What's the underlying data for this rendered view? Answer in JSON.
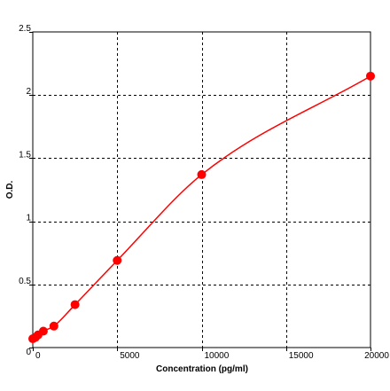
{
  "chart_data": {
    "type": "scatter",
    "title": "",
    "xlabel": "Concentration (pg/ml)",
    "ylabel": "O.D.",
    "xlim": [
      0,
      20000
    ],
    "ylim": [
      0,
      2.5
    ],
    "xticks": [
      0,
      5000,
      10000,
      15000,
      20000
    ],
    "yticks": [
      0,
      0.5,
      1,
      1.5,
      2,
      2.5
    ],
    "xtick_labels": [
      "0",
      "5000",
      "10000",
      "15000",
      "20000"
    ],
    "ytick_labels": [
      "0",
      "0.5",
      "1",
      "1.5",
      "2",
      "2.5"
    ],
    "grid": true,
    "legend": "none",
    "colors": {
      "series": "#ff0000",
      "grid": "#000000",
      "axis": "#000000"
    },
    "points": [
      {
        "x": 0,
        "y": 0.07
      },
      {
        "x": 150,
        "y": 0.08
      },
      {
        "x": 310,
        "y": 0.1
      },
      {
        "x": 625,
        "y": 0.13
      },
      {
        "x": 1250,
        "y": 0.17
      },
      {
        "x": 2500,
        "y": 0.34
      },
      {
        "x": 5000,
        "y": 0.69
      },
      {
        "x": 10000,
        "y": 1.37
      },
      {
        "x": 20000,
        "y": 2.15
      }
    ]
  }
}
